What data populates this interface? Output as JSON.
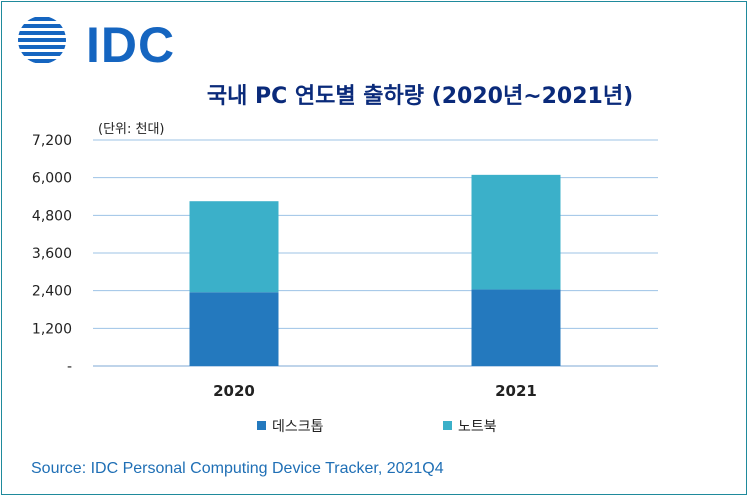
{
  "logo": {
    "text": "IDC",
    "name": "idc-logo"
  },
  "unit_label": "(단위: 천대)",
  "source": "Source: IDC Personal Computing Device Tracker, 2021Q4",
  "colors": {
    "desktop": "#2479be",
    "notebook": "#3bb0c9",
    "grid": "#9dc3e6",
    "accent": "#1565c0"
  },
  "chart_data": {
    "type": "bar",
    "stacked": true,
    "title": "국내 PC 연도별 출하량 (2020년~2021년)",
    "categories": [
      "2020",
      "2021"
    ],
    "series": [
      {
        "name": "데스크톱",
        "values": [
          2350,
          2440
        ]
      },
      {
        "name": "노트북",
        "values": [
          2900,
          3650
        ]
      }
    ],
    "ylim": [
      0,
      7200
    ],
    "yticks": [
      "-",
      "1,200",
      "2,400",
      "3,600",
      "4,800",
      "6,000",
      "7,200"
    ],
    "ytick_values": [
      0,
      1200,
      2400,
      3600,
      4800,
      6000,
      7200
    ],
    "grid": true,
    "legend_position": "bottom"
  }
}
